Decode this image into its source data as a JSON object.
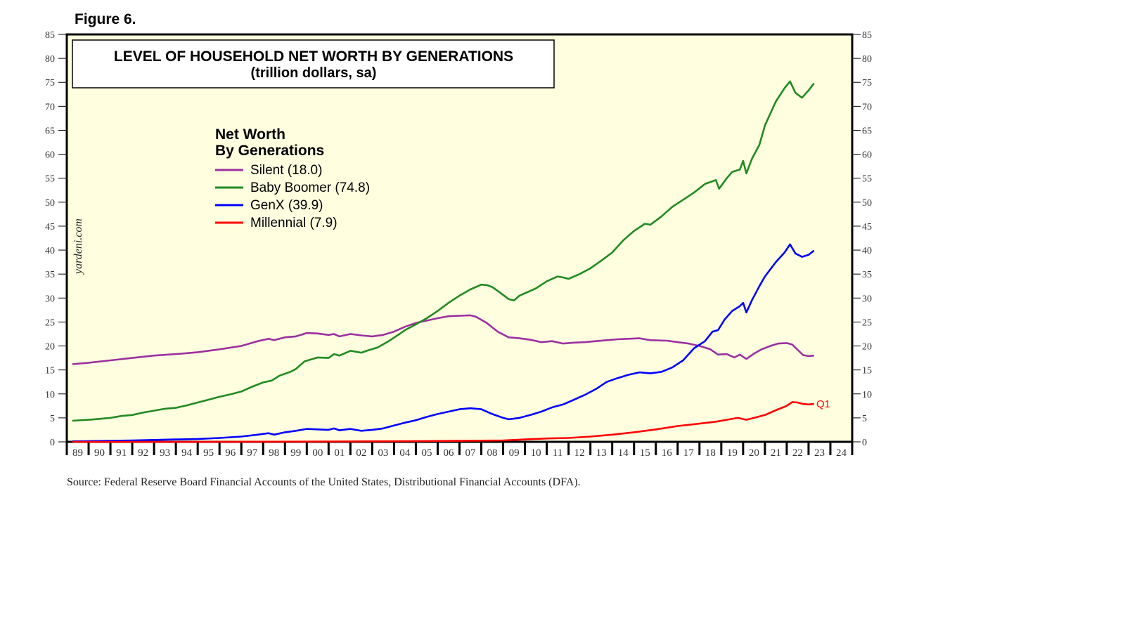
{
  "figure_label": "Figure 6.",
  "source": "Source: Federal Reserve Board Financial Accounts of the United States, Distributional Financial Accounts (DFA).",
  "brand": "yardeni.com",
  "colors": {
    "plot_bg": "#ffffe0",
    "silent": "#9b30a0",
    "boomer": "#218a21",
    "genx": "#0000ff",
    "millennial": "#ff0000"
  },
  "chart_data": {
    "type": "line",
    "title": "LEVEL OF HOUSEHOLD NET WORTH  BY GENERATIONS",
    "subtitle": "(trillion dollars, sa)",
    "legend_title": [
      "Net Worth",
      "By Generations"
    ],
    "legend_placement": "upper-left",
    "ylim": [
      0,
      85
    ],
    "yticks": [
      0,
      5,
      10,
      15,
      20,
      25,
      30,
      35,
      40,
      45,
      50,
      55,
      60,
      65,
      70,
      75,
      80,
      85
    ],
    "xlim": [
      1989,
      2025
    ],
    "xtick_labels": [
      "89",
      "90",
      "91",
      "92",
      "93",
      "94",
      "95",
      "96",
      "97",
      "98",
      "99",
      "00",
      "01",
      "02",
      "03",
      "04",
      "05",
      "06",
      "07",
      "08",
      "09",
      "10",
      "11",
      "12",
      "13",
      "14",
      "15",
      "16",
      "17",
      "18",
      "19",
      "20",
      "21",
      "22",
      "23",
      "24"
    ],
    "annotation": "Q1",
    "grid": false,
    "series": [
      {
        "name": "Silent (18.0)",
        "color_key": "silent",
        "points": [
          [
            1989.25,
            16.2
          ],
          [
            1990,
            16.5
          ],
          [
            1991,
            17.0
          ],
          [
            1992,
            17.5
          ],
          [
            1993,
            18.0
          ],
          [
            1994,
            18.3
          ],
          [
            1995,
            18.7
          ],
          [
            1996,
            19.3
          ],
          [
            1997,
            20.0
          ],
          [
            1997.75,
            21.0
          ],
          [
            1998.25,
            21.5
          ],
          [
            1998.5,
            21.2
          ],
          [
            1999,
            21.8
          ],
          [
            1999.5,
            22.0
          ],
          [
            2000,
            22.7
          ],
          [
            2000.5,
            22.6
          ],
          [
            2001,
            22.3
          ],
          [
            2001.25,
            22.5
          ],
          [
            2001.5,
            22.0
          ],
          [
            2002,
            22.5
          ],
          [
            2002.5,
            22.2
          ],
          [
            2003,
            22.0
          ],
          [
            2003.5,
            22.3
          ],
          [
            2004,
            23.0
          ],
          [
            2004.5,
            24.0
          ],
          [
            2005,
            24.8
          ],
          [
            2005.5,
            25.3
          ],
          [
            2006,
            25.8
          ],
          [
            2006.5,
            26.2
          ],
          [
            2007,
            26.3
          ],
          [
            2007.5,
            26.4
          ],
          [
            2007.75,
            26.1
          ],
          [
            2008.25,
            24.8
          ],
          [
            2008.75,
            23.0
          ],
          [
            2009.25,
            21.8
          ],
          [
            2009.75,
            21.6
          ],
          [
            2010.25,
            21.3
          ],
          [
            2010.75,
            20.8
          ],
          [
            2011.25,
            21.0
          ],
          [
            2011.75,
            20.5
          ],
          [
            2012.25,
            20.7
          ],
          [
            2012.75,
            20.8
          ],
          [
            2013.25,
            21.0
          ],
          [
            2013.75,
            21.2
          ],
          [
            2014.25,
            21.4
          ],
          [
            2014.75,
            21.5
          ],
          [
            2015.25,
            21.6
          ],
          [
            2015.75,
            21.2
          ],
          [
            2016.5,
            21.1
          ],
          [
            2017,
            20.8
          ],
          [
            2017.5,
            20.5
          ],
          [
            2018,
            20.0
          ],
          [
            2018.5,
            19.3
          ],
          [
            2018.85,
            18.2
          ],
          [
            2019.25,
            18.3
          ],
          [
            2019.6,
            17.6
          ],
          [
            2019.85,
            18.2
          ],
          [
            2020.15,
            17.3
          ],
          [
            2020.5,
            18.4
          ],
          [
            2020.85,
            19.3
          ],
          [
            2021.25,
            20.0
          ],
          [
            2021.6,
            20.5
          ],
          [
            2022,
            20.6
          ],
          [
            2022.25,
            20.3
          ],
          [
            2022.5,
            19.2
          ],
          [
            2022.75,
            18.1
          ],
          [
            2023,
            17.9
          ],
          [
            2023.25,
            18.0
          ]
        ]
      },
      {
        "name": "Baby Boomer (74.8)",
        "color_key": "boomer",
        "points": [
          [
            1989.25,
            4.4
          ],
          [
            1990,
            4.6
          ],
          [
            1991,
            5.0
          ],
          [
            1991.5,
            5.4
          ],
          [
            1992,
            5.6
          ],
          [
            1992.5,
            6.1
          ],
          [
            1993,
            6.5
          ],
          [
            1993.5,
            6.9
          ],
          [
            1994,
            7.1
          ],
          [
            1994.5,
            7.6
          ],
          [
            1995,
            8.2
          ],
          [
            1995.5,
            8.8
          ],
          [
            1996,
            9.4
          ],
          [
            1996.5,
            9.9
          ],
          [
            1997,
            10.5
          ],
          [
            1997.5,
            11.5
          ],
          [
            1998,
            12.4
          ],
          [
            1998.4,
            12.8
          ],
          [
            1998.75,
            13.8
          ],
          [
            1999.25,
            14.6
          ],
          [
            1999.5,
            15.2
          ],
          [
            1999.9,
            16.8
          ],
          [
            2000.5,
            17.6
          ],
          [
            2001,
            17.5
          ],
          [
            2001.25,
            18.3
          ],
          [
            2001.5,
            18.0
          ],
          [
            2002,
            19.0
          ],
          [
            2002.5,
            18.6
          ],
          [
            2002.75,
            19.0
          ],
          [
            2003.25,
            19.7
          ],
          [
            2003.75,
            21.0
          ],
          [
            2004.25,
            22.5
          ],
          [
            2004.5,
            23.3
          ],
          [
            2005,
            24.5
          ],
          [
            2005.5,
            25.8
          ],
          [
            2006,
            27.3
          ],
          [
            2006.5,
            29.0
          ],
          [
            2007,
            30.5
          ],
          [
            2007.5,
            31.8
          ],
          [
            2008,
            32.8
          ],
          [
            2008.25,
            32.7
          ],
          [
            2008.5,
            32.3
          ],
          [
            2008.75,
            31.5
          ],
          [
            2009.25,
            29.8
          ],
          [
            2009.5,
            29.5
          ],
          [
            2009.75,
            30.5
          ],
          [
            2010.25,
            31.5
          ],
          [
            2010.5,
            32.0
          ],
          [
            2011,
            33.5
          ],
          [
            2011.5,
            34.5
          ],
          [
            2011.75,
            34.3
          ],
          [
            2012,
            34.0
          ],
          [
            2012.5,
            35.0
          ],
          [
            2013,
            36.2
          ],
          [
            2013.5,
            37.8
          ],
          [
            2014,
            39.5
          ],
          [
            2014.5,
            42.0
          ],
          [
            2015,
            44.0
          ],
          [
            2015.5,
            45.5
          ],
          [
            2015.75,
            45.3
          ],
          [
            2016.25,
            47.0
          ],
          [
            2016.75,
            49.0
          ],
          [
            2017.25,
            50.5
          ],
          [
            2017.75,
            52.0
          ],
          [
            2018.25,
            53.8
          ],
          [
            2018.75,
            54.6
          ],
          [
            2018.9,
            52.8
          ],
          [
            2019.25,
            55.0
          ],
          [
            2019.5,
            56.3
          ],
          [
            2019.85,
            56.8
          ],
          [
            2020,
            58.6
          ],
          [
            2020.15,
            56.0
          ],
          [
            2020.4,
            59.0
          ],
          [
            2020.75,
            62.0
          ],
          [
            2021,
            66.0
          ],
          [
            2021.5,
            71.0
          ],
          [
            2021.9,
            73.8
          ],
          [
            2022.15,
            75.2
          ],
          [
            2022.4,
            72.8
          ],
          [
            2022.7,
            71.8
          ],
          [
            2023,
            73.3
          ],
          [
            2023.25,
            74.8
          ]
        ]
      },
      {
        "name": "GenX (39.9)",
        "color_key": "genx",
        "points": [
          [
            1989.25,
            0.1
          ],
          [
            1990,
            0.15
          ],
          [
            1991,
            0.2
          ],
          [
            1992,
            0.3
          ],
          [
            1993,
            0.4
          ],
          [
            1994,
            0.5
          ],
          [
            1995,
            0.6
          ],
          [
            1996,
            0.8
          ],
          [
            1997,
            1.1
          ],
          [
            1997.75,
            1.5
          ],
          [
            1998.25,
            1.8
          ],
          [
            1998.5,
            1.5
          ],
          [
            1999,
            2.0
          ],
          [
            1999.5,
            2.3
          ],
          [
            2000,
            2.7
          ],
          [
            2000.5,
            2.6
          ],
          [
            2001,
            2.5
          ],
          [
            2001.25,
            2.8
          ],
          [
            2001.5,
            2.4
          ],
          [
            2002,
            2.7
          ],
          [
            2002.5,
            2.3
          ],
          [
            2003,
            2.5
          ],
          [
            2003.5,
            2.8
          ],
          [
            2004,
            3.4
          ],
          [
            2004.5,
            4.0
          ],
          [
            2005,
            4.5
          ],
          [
            2005.5,
            5.2
          ],
          [
            2006,
            5.8
          ],
          [
            2006.5,
            6.3
          ],
          [
            2007,
            6.8
          ],
          [
            2007.5,
            7.0
          ],
          [
            2008,
            6.8
          ],
          [
            2008.5,
            5.8
          ],
          [
            2009,
            5.0
          ],
          [
            2009.25,
            4.7
          ],
          [
            2009.75,
            5.0
          ],
          [
            2010.25,
            5.6
          ],
          [
            2010.75,
            6.3
          ],
          [
            2011.25,
            7.2
          ],
          [
            2011.75,
            7.8
          ],
          [
            2012.25,
            8.8
          ],
          [
            2012.75,
            9.8
          ],
          [
            2013.25,
            11.0
          ],
          [
            2013.75,
            12.5
          ],
          [
            2014.25,
            13.3
          ],
          [
            2014.75,
            14.0
          ],
          [
            2015.25,
            14.5
          ],
          [
            2015.75,
            14.3
          ],
          [
            2016.25,
            14.6
          ],
          [
            2016.75,
            15.5
          ],
          [
            2017.25,
            17.0
          ],
          [
            2017.75,
            19.5
          ],
          [
            2018.25,
            21.0
          ],
          [
            2018.6,
            23.0
          ],
          [
            2018.85,
            23.3
          ],
          [
            2019.15,
            25.5
          ],
          [
            2019.5,
            27.3
          ],
          [
            2019.85,
            28.3
          ],
          [
            2020,
            29.0
          ],
          [
            2020.15,
            27.0
          ],
          [
            2020.4,
            29.5
          ],
          [
            2020.75,
            32.5
          ],
          [
            2021,
            34.5
          ],
          [
            2021.5,
            37.5
          ],
          [
            2021.9,
            39.5
          ],
          [
            2022.15,
            41.2
          ],
          [
            2022.4,
            39.3
          ],
          [
            2022.7,
            38.6
          ],
          [
            2023,
            39.0
          ],
          [
            2023.25,
            39.9
          ]
        ]
      },
      {
        "name": "Millennial (7.9)",
        "color_key": "millennial",
        "points": [
          [
            1989.25,
            0.0
          ],
          [
            1995,
            0.0
          ],
          [
            2000,
            0.05
          ],
          [
            2003,
            0.1
          ],
          [
            2005,
            0.15
          ],
          [
            2007,
            0.2
          ],
          [
            2009,
            0.3
          ],
          [
            2010,
            0.5
          ],
          [
            2011,
            0.7
          ],
          [
            2012,
            0.8
          ],
          [
            2013,
            1.1
          ],
          [
            2014,
            1.5
          ],
          [
            2015,
            2.0
          ],
          [
            2016,
            2.6
          ],
          [
            2017,
            3.3
          ],
          [
            2018,
            3.8
          ],
          [
            2018.75,
            4.2
          ],
          [
            2019.25,
            4.6
          ],
          [
            2019.75,
            5.0
          ],
          [
            2020.15,
            4.6
          ],
          [
            2020.5,
            5.0
          ],
          [
            2021,
            5.6
          ],
          [
            2021.5,
            6.6
          ],
          [
            2022,
            7.5
          ],
          [
            2022.25,
            8.3
          ],
          [
            2022.5,
            8.2
          ],
          [
            2022.75,
            7.9
          ],
          [
            2023,
            7.8
          ],
          [
            2023.25,
            7.9
          ]
        ]
      }
    ]
  }
}
